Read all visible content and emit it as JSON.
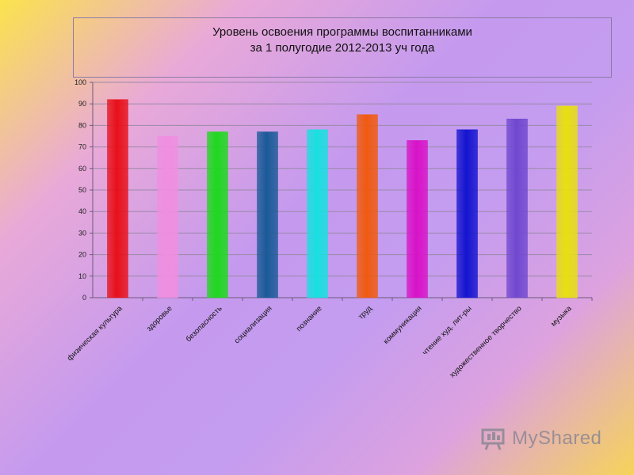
{
  "chart_data": {
    "type": "bar",
    "title_line1": "Уровень освоения программы  воспитанниками",
    "title_line2": "за 1 полугодие 2012-2013 уч года",
    "categories": [
      "физическая культура",
      "здоровье",
      "безопасность",
      "социализация",
      "познание",
      "труд",
      "коммуникация",
      "чтение худ. лит-ры",
      "художественное творчество",
      "музыка"
    ],
    "values": [
      92,
      75,
      77,
      77,
      78,
      85,
      73,
      78,
      83,
      89
    ],
    "colors": [
      "#e8101a",
      "#f08ee0",
      "#1ed81e",
      "#1a5a98",
      "#18e0e0",
      "#f05a10",
      "#d812c8",
      "#1414d0",
      "#7048d0",
      "#e8e010"
    ],
    "ylim": [
      0,
      100
    ],
    "yticks": [
      0,
      10,
      20,
      30,
      40,
      50,
      60,
      70,
      80,
      90,
      100
    ],
    "grid": true,
    "xlabel": "",
    "ylabel": ""
  },
  "watermark": {
    "text": "MyShared"
  }
}
